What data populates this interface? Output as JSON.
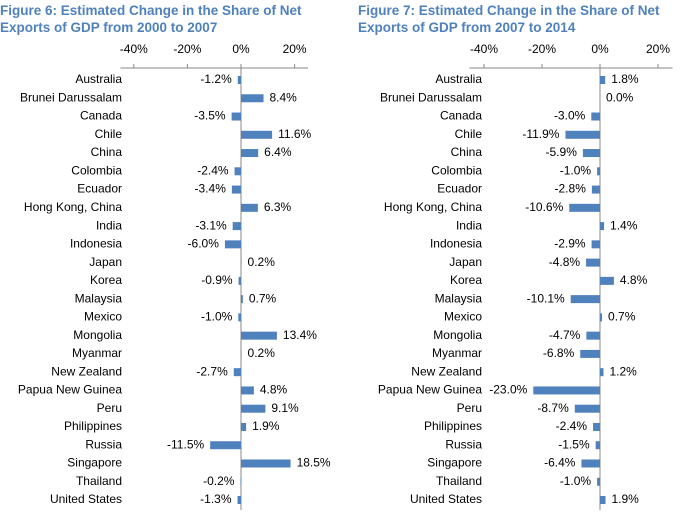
{
  "chart_data": [
    {
      "type": "hbar",
      "title": "Figure 6: Estimated Change in the Share of Net Exports of GDP from 2000 to 2007",
      "categories": [
        "Australia",
        "Brunei Darussalam",
        "Canada",
        "Chile",
        "China",
        "Colombia",
        "Ecuador",
        "Hong Kong, China",
        "India",
        "Indonesia",
        "Japan",
        "Korea",
        "Malaysia",
        "Mexico",
        "Mongolia",
        "Myanmar",
        "New Zealand",
        "Papua New Guinea",
        "Peru",
        "Philippines",
        "Russia",
        "Singapore",
        "Thailand",
        "United States"
      ],
      "values": [
        -1.2,
        8.4,
        -3.5,
        11.6,
        6.4,
        -2.4,
        -3.4,
        6.3,
        -3.1,
        -6.0,
        0.2,
        -0.9,
        0.7,
        -1.0,
        13.4,
        0.2,
        -2.7,
        4.8,
        9.1,
        1.9,
        -11.5,
        18.5,
        -0.2,
        -1.3
      ],
      "value_labels": [
        "-1.2%",
        "8.4%",
        "-3.5%",
        "11.6%",
        "6.4%",
        "-2.4%",
        "-3.4%",
        "6.3%",
        "-3.1%",
        "-6.0%",
        "0.2%",
        "-0.9%",
        "0.7%",
        "-1.0%",
        "13.4%",
        "0.2%",
        "-2.7%",
        "4.8%",
        "9.1%",
        "1.9%",
        "-11.5%",
        "18.5%",
        "-0.2%",
        "-1.3%"
      ],
      "color": "#4f81bd",
      "xlim": [
        -45,
        25
      ],
      "xticks": [
        {
          "value": -40,
          "label": "-40%"
        },
        {
          "value": -20,
          "label": "-20%"
        },
        {
          "value": 0,
          "label": "0%"
        },
        {
          "value": 20,
          "label": "20%"
        }
      ]
    },
    {
      "type": "hbar",
      "title": "Figure 7: Estimated Change in the Share of Net Exports of GDP from 2007 to 2014",
      "categories": [
        "Australia",
        "Brunei Darussalam",
        "Canada",
        "Chile",
        "China",
        "Colombia",
        "Ecuador",
        "Hong Kong, China",
        "India",
        "Indonesia",
        "Japan",
        "Korea",
        "Malaysia",
        "Mexico",
        "Mongolia",
        "Myanmar",
        "New Zealand",
        "Papua New Guinea",
        "Peru",
        "Philippines",
        "Russia",
        "Singapore",
        "Thailand",
        "United States"
      ],
      "values": [
        1.8,
        0.0,
        -3.0,
        -11.9,
        -5.9,
        -1.0,
        -2.8,
        -10.6,
        1.4,
        -2.9,
        -4.8,
        4.8,
        -10.1,
        0.7,
        -4.7,
        -6.8,
        1.2,
        -23.0,
        -8.7,
        -2.4,
        -1.5,
        -6.4,
        -1.0,
        1.9
      ],
      "value_labels": [
        "1.8%",
        "0.0%",
        "-3.0%",
        "-11.9%",
        "-5.9%",
        "-1.0%",
        "-2.8%",
        "-10.6%",
        "1.4%",
        "-2.9%",
        "-4.8%",
        "4.8%",
        "-10.1%",
        "0.7%",
        "-4.7%",
        "-6.8%",
        "1.2%",
        "-23.0%",
        "-8.7%",
        "-2.4%",
        "-1.5%",
        "-6.4%",
        "-1.0%",
        "1.9%"
      ],
      "color": "#4f81bd",
      "xlim": [
        -45,
        25
      ],
      "xticks": [
        {
          "value": -40,
          "label": "-40%"
        },
        {
          "value": -20,
          "label": "-20%"
        },
        {
          "value": 0,
          "label": "0%"
        },
        {
          "value": 20,
          "label": "20%"
        }
      ]
    }
  ]
}
